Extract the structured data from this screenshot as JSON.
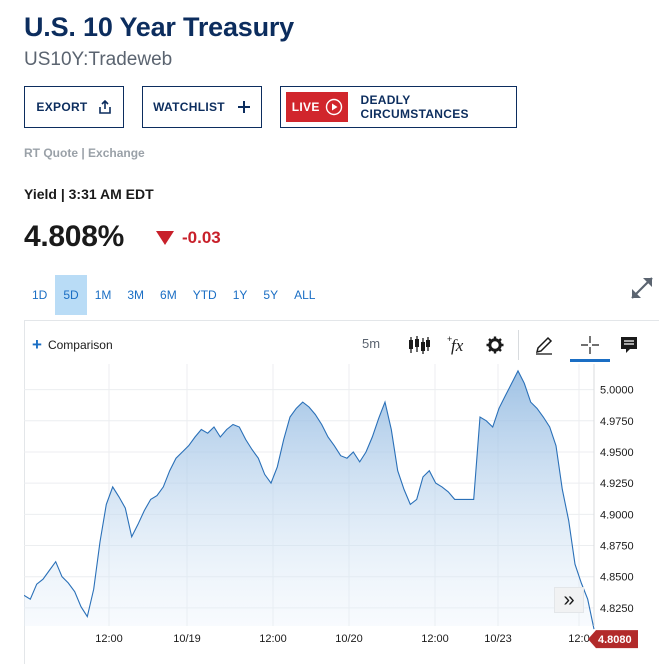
{
  "header": {
    "title": "U.S. 10 Year Treasury",
    "subtitle": "US10Y:Tradeweb"
  },
  "actions": {
    "export_label": "EXPORT",
    "watchlist_label": "WATCHLIST",
    "live_badge": "LIVE",
    "live_show": "DEADLY CIRCUMSTANCES"
  },
  "quote": {
    "source": "RT Quote | Exchange",
    "label": "Yield | 3:31 AM EDT",
    "price": "4.808%",
    "change": "-0.03",
    "change_color": "#c8202a"
  },
  "ranges": {
    "items": [
      "1D",
      "5D",
      "1M",
      "3M",
      "6M",
      "YTD",
      "1Y",
      "5Y",
      "ALL"
    ],
    "active": "5D"
  },
  "toolbar": {
    "comparison_label": "Comparison",
    "interval": "5m",
    "icons": [
      "candlestick-icon",
      "function-icon",
      "gear-icon",
      "pencil-icon",
      "crosshair-icon",
      "comment-icon"
    ]
  },
  "chart_data": {
    "type": "area",
    "y_ticks": [
      "5.0000",
      "4.9750",
      "4.9500",
      "4.9250",
      "4.9000",
      "4.8750",
      "4.8500",
      "4.8250"
    ],
    "x_ticks": [
      "12:00",
      "10/19",
      "12:00",
      "10/20",
      "12:00",
      "10/23",
      "12:0"
    ],
    "ylim": [
      4.8105,
      5.0205
    ],
    "last_value_label": "4.8080",
    "last_value": 4.808,
    "line_color": "#2a70b8",
    "grid": true,
    "points": [
      [
        0,
        4.835
      ],
      [
        4,
        4.832
      ],
      [
        8,
        4.844
      ],
      [
        12,
        4.848
      ],
      [
        16,
        4.855
      ],
      [
        20,
        4.862
      ],
      [
        24,
        4.85
      ],
      [
        28,
        4.845
      ],
      [
        32,
        4.838
      ],
      [
        36,
        4.826
      ],
      [
        40,
        4.818
      ],
      [
        44,
        4.84
      ],
      [
        48,
        4.878
      ],
      [
        52,
        4.908
      ],
      [
        56,
        4.922
      ],
      [
        60,
        4.914
      ],
      [
        64,
        4.905
      ],
      [
        68,
        4.882
      ],
      [
        72,
        4.892
      ],
      [
        76,
        4.903
      ],
      [
        80,
        4.912
      ],
      [
        84,
        4.915
      ],
      [
        88,
        4.922
      ],
      [
        92,
        4.935
      ],
      [
        96,
        4.945
      ],
      [
        100,
        4.95
      ],
      [
        104,
        4.955
      ],
      [
        108,
        4.962
      ],
      [
        112,
        4.968
      ],
      [
        116,
        4.965
      ],
      [
        120,
        4.97
      ],
      [
        124,
        4.962
      ],
      [
        128,
        4.968
      ],
      [
        132,
        4.972
      ],
      [
        136,
        4.97
      ],
      [
        140,
        4.96
      ],
      [
        144,
        4.952
      ],
      [
        148,
        4.945
      ],
      [
        152,
        4.932
      ],
      [
        156,
        4.925
      ],
      [
        160,
        4.938
      ],
      [
        164,
        4.96
      ],
      [
        168,
        4.978
      ],
      [
        172,
        4.985
      ],
      [
        176,
        4.99
      ],
      [
        180,
        4.986
      ],
      [
        184,
        4.98
      ],
      [
        188,
        4.972
      ],
      [
        192,
        4.962
      ],
      [
        196,
        4.955
      ],
      [
        200,
        4.947
      ],
      [
        204,
        4.945
      ],
      [
        208,
        4.95
      ],
      [
        212,
        4.942
      ],
      [
        216,
        4.95
      ],
      [
        220,
        4.962
      ],
      [
        224,
        4.977
      ],
      [
        228,
        4.99
      ],
      [
        232,
        4.968
      ],
      [
        236,
        4.935
      ],
      [
        240,
        4.92
      ],
      [
        244,
        4.908
      ],
      [
        248,
        4.912
      ],
      [
        252,
        4.93
      ],
      [
        256,
        4.935
      ],
      [
        260,
        4.925
      ],
      [
        264,
        4.922
      ],
      [
        268,
        4.918
      ],
      [
        272,
        4.912
      ],
      [
        276,
        4.912
      ],
      [
        280,
        4.912
      ],
      [
        284,
        4.912
      ],
      [
        288,
        4.978
      ],
      [
        292,
        4.975
      ],
      [
        296,
        4.97
      ],
      [
        300,
        4.985
      ],
      [
        304,
        4.995
      ],
      [
        308,
        5.005
      ],
      [
        312,
        5.015
      ],
      [
        316,
        5.005
      ],
      [
        320,
        4.99
      ],
      [
        324,
        4.985
      ],
      [
        328,
        4.978
      ],
      [
        332,
        4.97
      ],
      [
        336,
        4.955
      ],
      [
        340,
        4.92
      ],
      [
        344,
        4.895
      ],
      [
        348,
        4.86
      ],
      [
        352,
        4.845
      ],
      [
        356,
        4.832
      ],
      [
        360,
        4.808
      ]
    ]
  },
  "chart_labels": {
    "scroll_right": "»"
  }
}
